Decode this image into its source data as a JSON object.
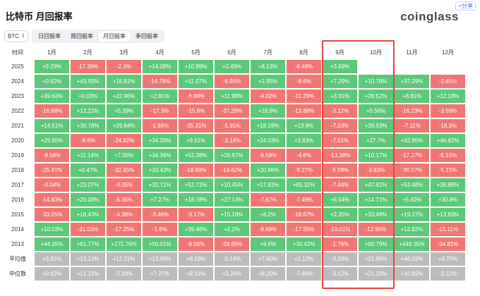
{
  "header": {
    "title": "比特币 月回报率",
    "share_label": "<分享",
    "logo_text": "coinglass"
  },
  "controls": {
    "coin": "BTC",
    "tabs": [
      {
        "label": "日回报率",
        "active": false
      },
      {
        "label": "周回报率",
        "active": false
      },
      {
        "label": "月回报率",
        "active": true
      },
      {
        "label": "季回报率",
        "active": false
      }
    ]
  },
  "table": {
    "corner_label": "时间",
    "columns": [
      "1月",
      "2月",
      "3月",
      "4月",
      "5月",
      "6月",
      "7月",
      "8月",
      "9月",
      "10月",
      "11月",
      "12月"
    ],
    "rows": [
      {
        "label": "2025",
        "values": [
          "+9.29%",
          "-17.39%",
          "-2.3%",
          "+14.08%",
          "+10.99%",
          "+2.49%",
          "+8.13%",
          "-6.49%",
          "+3.59%",
          "",
          "",
          ""
        ]
      },
      {
        "label": "2024",
        "values": [
          "+0.62%",
          "+43.55%",
          "+16.81%",
          "-14.76%",
          "+11.07%",
          "-6.96%",
          "+2.95%",
          "-8.6%",
          "+7.29%",
          "+10.76%",
          "+37.29%",
          "-2.85%"
        ]
      },
      {
        "label": "2023",
        "values": [
          "+39.63%",
          "+0.03%",
          "+22.96%",
          "+2.81%",
          "-6.98%",
          "+11.98%",
          "-4.02%",
          "-11.29%",
          "+3.91%",
          "+28.52%",
          "+8.81%",
          "+12.18%"
        ]
      },
      {
        "label": "2022",
        "values": [
          "-16.68%",
          "+12.21%",
          "+5.39%",
          "-17.3%",
          "-15.6%",
          "-37.28%",
          "+16.8%",
          "-13.88%",
          "-3.12%",
          "+5.56%",
          "-16.23%",
          "-3.59%"
        ]
      },
      {
        "label": "2021",
        "values": [
          "+14.51%",
          "+36.78%",
          "+29.84%",
          "-1.98%",
          "-35.31%",
          "-5.95%",
          "+18.19%",
          "+13.8%",
          "-7.03%",
          "+39.93%",
          "-7.11%",
          "-18.9%"
        ]
      },
      {
        "label": "2020",
        "values": [
          "+29.95%",
          "-8.6%",
          "-24.92%",
          "+34.26%",
          "+9.51%",
          "-3.18%",
          "+24.03%",
          "+2.83%",
          "-7.51%",
          "+27.7%",
          "+42.95%",
          "+46.92%"
        ]
      },
      {
        "label": "2019",
        "values": [
          "-8.58%",
          "+11.14%",
          "+7.05%",
          "+34.36%",
          "+52.38%",
          "+26.67%",
          "-6.59%",
          "-4.6%",
          "-13.38%",
          "+10.17%",
          "-17.27%",
          "-5.15%"
        ]
      },
      {
        "label": "2018",
        "values": [
          "-25.41%",
          "+0.47%",
          "-32.85%",
          "+33.43%",
          "-18.99%",
          "-14.62%",
          "+20.96%",
          "-9.27%",
          "-5.58%",
          "-3.83%",
          "-36.57%",
          "-5.15%"
        ]
      },
      {
        "label": "2017",
        "values": [
          "-0.04%",
          "+23.07%",
          "-9.05%",
          "+32.71%",
          "+52.71%",
          "+10.45%",
          "+17.92%",
          "+65.32%",
          "-7.44%",
          "+47.81%",
          "+53.48%",
          "+38.89%"
        ]
      },
      {
        "label": "2016",
        "values": [
          "-14.83%",
          "+20.08%",
          "-5.35%",
          "+7.27%",
          "+18.78%",
          "+27.14%",
          "-7.67%",
          "-7.49%",
          "+6.04%",
          "+14.71%",
          "+5.42%",
          "+30.8%"
        ]
      },
      {
        "label": "2015",
        "values": [
          "-33.05%",
          "+18.43%",
          "-4.38%",
          "-3.46%",
          "-3.17%",
          "+15.19%",
          "+8.2%",
          "-18.67%",
          "+2.35%",
          "+33.49%",
          "+19.27%",
          "+13.83%"
        ]
      },
      {
        "label": "2014",
        "values": [
          "+10.03%",
          "-31.03%",
          "-17.25%",
          "-1.6%",
          "+39.46%",
          "+2.2%",
          "-9.69%",
          "-17.55%",
          "-19.01%",
          "-12.95%",
          "+12.82%",
          "-15.11%"
        ]
      },
      {
        "label": "2013",
        "values": [
          "+44.05%",
          "+61.77%",
          "+172.76%",
          "+50.01%",
          "-8.56%",
          "-29.89%",
          "+9.6%",
          "+30.42%",
          "-1.76%",
          "+60.79%",
          "+449.35%",
          "-34.81%"
        ]
      }
    ],
    "stats": [
      {
        "label": "平均值",
        "values": [
          "+3.81%",
          "+13.12%",
          "+12.21%",
          "+13.06%",
          "+8.18%",
          "-0.14%",
          "+7.60%",
          "+1.12%",
          "-3.20%",
          "+21.89%",
          "+46.02%",
          "+4.75%"
        ]
      },
      {
        "label": "中位数",
        "values": [
          "+0.62%",
          "+12.21%",
          "-2.30%",
          "+7.27%",
          "+9.51%",
          "+2.20%",
          "+8.20%",
          "-7.49%",
          "-3.12%",
          "+21.20%",
          "+10.82%",
          "-3.22%"
        ]
      }
    ]
  },
  "colors": {
    "positive": "#5dc87a",
    "negative": "#f07674",
    "stat_row": "#bcbcbc",
    "highlight_border": "#e8443e"
  }
}
